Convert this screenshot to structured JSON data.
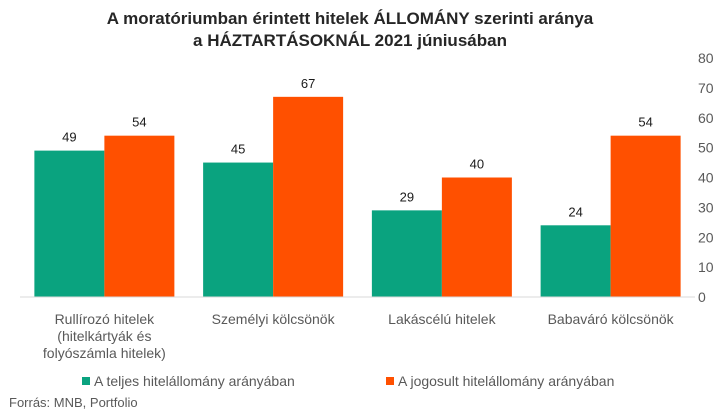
{
  "chart_data": {
    "type": "bar",
    "title_line1": "A moratóriumban érintett hitelek ÁLLOMÁNY szerinti aránya",
    "title_line2": "a HÁZTARTÁSOKNÁL 2021 júniusában",
    "categories": [
      [
        "Rullírozó hitelek",
        "(hitelkártyák és",
        "folyószámla hitelek)"
      ],
      [
        "Személyi kölcsönök"
      ],
      [
        "Lakáscélú hitelek"
      ],
      [
        "Babaváró kölcsönök"
      ]
    ],
    "series": [
      {
        "name": "A teljes hitelállomány arányában",
        "color": "#0aa37f",
        "values": [
          49,
          45,
          29,
          24
        ]
      },
      {
        "name": "A jogosult hitelállomány arányában",
        "color": "#ff5000",
        "values": [
          54,
          67,
          40,
          54
        ]
      }
    ],
    "ylim": [
      0,
      80
    ],
    "yticks": [
      0,
      10,
      20,
      30,
      40,
      50,
      60,
      70,
      80
    ],
    "y_axis_side": "right",
    "grid": false,
    "legend_position": "bottom",
    "source": "Forrás: MNB, Portfolio"
  }
}
